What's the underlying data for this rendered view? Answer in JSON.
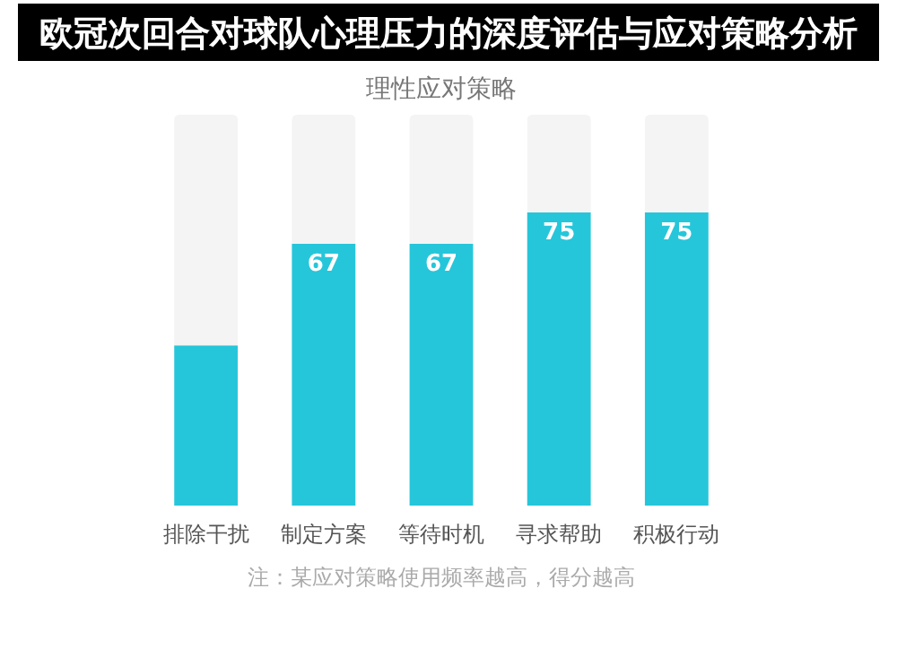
{
  "chart_data": {
    "type": "bar",
    "stacked": true,
    "title": "理性应对策略",
    "categories": [
      "排除干扰",
      "制定方案",
      "等待时机",
      "寻求帮助",
      "积极行动"
    ],
    "ylim": [
      0,
      100
    ],
    "series": [
      {
        "color": "#26c6da",
        "values": [
          41,
          67,
          67,
          75,
          75
        ],
        "value_labels": [
          null,
          "67",
          "67",
          "75",
          "75"
        ]
      },
      {
        "color": "#f4f4f4",
        "values": [
          59,
          33,
          33,
          25,
          25
        ]
      }
    ],
    "annotations": [
      "欧冠次回合对球队心理压力的深度评估与应对策略分析",
      "注：某应对策略使用频率越高，得分越高"
    ]
  }
}
